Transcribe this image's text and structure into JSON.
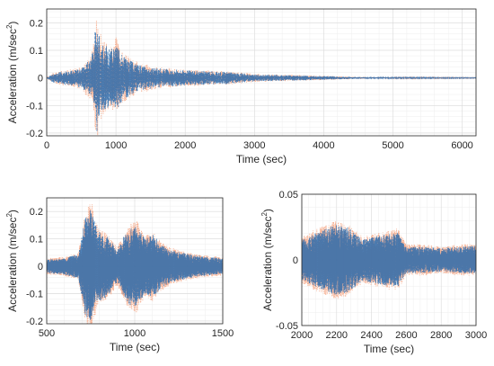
{
  "chart_data": [
    {
      "type": "line",
      "id": "top",
      "xlabel": "Time (sec)",
      "ylabel": "Acceleration (m/sec",
      "ylabel_sup": "2",
      "ylabel_close": ")",
      "xlim": [
        0,
        6200
      ],
      "ylim": [
        -0.21,
        0.25
      ],
      "xticks": [
        0,
        1000,
        2000,
        3000,
        4000,
        5000,
        6000
      ],
      "yticks": [
        -0.2,
        -0.1,
        0,
        0.1,
        0.2
      ],
      "ytick_labels": [
        "-0.2",
        "-0.1",
        "0",
        "0.1",
        "0.2"
      ],
      "grid": true,
      "series": [
        {
          "color": "#f4a582",
          "style": "dotted",
          "envelope": [
            [
              0,
              0.004
            ],
            [
              100,
              0.02
            ],
            [
              300,
              0.03
            ],
            [
              500,
              0.04
            ],
            [
              650,
              0.09
            ],
            [
              720,
              0.24
            ],
            [
              800,
              0.14
            ],
            [
              900,
              0.12
            ],
            [
              1000,
              0.15
            ],
            [
              1100,
              0.09
            ],
            [
              1300,
              0.06
            ],
            [
              1600,
              0.04
            ],
            [
              2000,
              0.03
            ],
            [
              2600,
              0.025
            ],
            [
              3000,
              0.015
            ],
            [
              4000,
              0.008
            ],
            [
              4500,
              0.004
            ],
            [
              5000,
              0.002
            ],
            [
              6200,
              0.001
            ]
          ]
        },
        {
          "color": "#2166ac",
          "style": "dashed",
          "envelope": [
            [
              0,
              0.003
            ],
            [
              100,
              0.018
            ],
            [
              300,
              0.028
            ],
            [
              500,
              0.035
            ],
            [
              650,
              0.08
            ],
            [
              720,
              0.21
            ],
            [
              800,
              0.13
            ],
            [
              900,
              0.11
            ],
            [
              1000,
              0.13
            ],
            [
              1100,
              0.08
            ],
            [
              1300,
              0.05
            ],
            [
              1600,
              0.035
            ],
            [
              2000,
              0.028
            ],
            [
              2600,
              0.022
            ],
            [
              3000,
              0.013
            ],
            [
              4000,
              0.007
            ],
            [
              4500,
              0.003
            ],
            [
              5000,
              0.0015
            ],
            [
              6200,
              0.001
            ]
          ]
        }
      ]
    },
    {
      "type": "line",
      "id": "bottom-left",
      "xlabel": "Time (sec)",
      "ylabel": "Acceleration (m/sec",
      "ylabel_sup": "2",
      "ylabel_close": ")",
      "xlim": [
        500,
        1500
      ],
      "ylim": [
        -0.21,
        0.25
      ],
      "xticks": [
        500,
        1000,
        1500
      ],
      "yticks": [
        -0.2,
        -0.1,
        0,
        0.1,
        0.2
      ],
      "ytick_labels": [
        "-0.2",
        "-0.1",
        "0",
        "0.1",
        "0.2"
      ],
      "grid": true,
      "series": [
        {
          "color": "#f4a582",
          "style": "dotted",
          "envelope": [
            [
              500,
              0.03
            ],
            [
              600,
              0.035
            ],
            [
              680,
              0.05
            ],
            [
              720,
              0.2
            ],
            [
              750,
              0.25
            ],
            [
              790,
              0.14
            ],
            [
              850,
              0.12
            ],
            [
              900,
              0.07
            ],
            [
              960,
              0.15
            ],
            [
              1010,
              0.17
            ],
            [
              1060,
              0.11
            ],
            [
              1100,
              0.13
            ],
            [
              1150,
              0.09
            ],
            [
              1200,
              0.07
            ],
            [
              1300,
              0.05
            ],
            [
              1400,
              0.04
            ],
            [
              1500,
              0.035
            ]
          ]
        },
        {
          "color": "#2166ac",
          "style": "dashed",
          "envelope": [
            [
              500,
              0.025
            ],
            [
              600,
              0.03
            ],
            [
              680,
              0.045
            ],
            [
              720,
              0.18
            ],
            [
              750,
              0.21
            ],
            [
              790,
              0.13
            ],
            [
              850,
              0.11
            ],
            [
              900,
              0.06
            ],
            [
              960,
              0.14
            ],
            [
              1010,
              0.15
            ],
            [
              1060,
              0.1
            ],
            [
              1100,
              0.12
            ],
            [
              1150,
              0.08
            ],
            [
              1200,
              0.06
            ],
            [
              1300,
              0.045
            ],
            [
              1400,
              0.035
            ],
            [
              1500,
              0.03
            ]
          ]
        }
      ]
    },
    {
      "type": "line",
      "id": "bottom-right",
      "xlabel": "Time (sec)",
      "ylabel": "Acceleration (m/sec",
      "ylabel_sup": "2",
      "ylabel_close": ")",
      "xlim": [
        2000,
        3000
      ],
      "ylim": [
        -0.05,
        0.05
      ],
      "xticks": [
        2000,
        2200,
        2400,
        2600,
        2800,
        3000
      ],
      "yticks": [
        -0.05,
        0,
        0.05
      ],
      "ytick_labels": [
        "-0.05",
        "0",
        "0.05"
      ],
      "grid": true,
      "series": [
        {
          "color": "#f4a582",
          "style": "dotted",
          "envelope": [
            [
              2000,
              0.018
            ],
            [
              2100,
              0.025
            ],
            [
              2200,
              0.03
            ],
            [
              2260,
              0.028
            ],
            [
              2350,
              0.018
            ],
            [
              2420,
              0.02
            ],
            [
              2550,
              0.024
            ],
            [
              2600,
              0.012
            ],
            [
              2700,
              0.012
            ],
            [
              2800,
              0.01
            ],
            [
              2900,
              0.012
            ],
            [
              3000,
              0.012
            ]
          ]
        },
        {
          "color": "#2166ac",
          "style": "dashed",
          "envelope": [
            [
              2000,
              0.015
            ],
            [
              2100,
              0.022
            ],
            [
              2200,
              0.027
            ],
            [
              2260,
              0.025
            ],
            [
              2350,
              0.016
            ],
            [
              2420,
              0.018
            ],
            [
              2550,
              0.021
            ],
            [
              2600,
              0.01
            ],
            [
              2700,
              0.01
            ],
            [
              2800,
              0.009
            ],
            [
              2900,
              0.01
            ],
            [
              3000,
              0.011
            ]
          ]
        }
      ]
    }
  ]
}
